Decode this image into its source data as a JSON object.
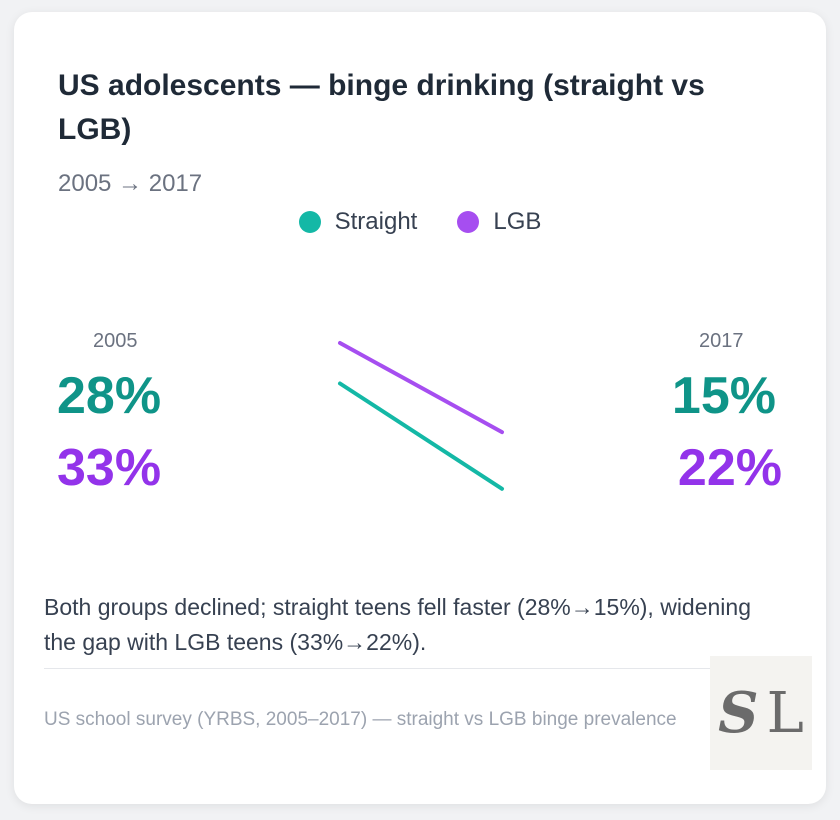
{
  "title": "US adolescents — binge drinking (straight vs LGB)",
  "subtitle": "2005 → 2017",
  "colors": {
    "straight": "#14b8a6",
    "straight_text": "#0f9488",
    "lgb": "#a64ef0",
    "lgb_text": "#9333ea"
  },
  "chart_data": {
    "type": "line",
    "subtype": "slope",
    "title": "US adolescents — binge drinking (straight vs LGB)",
    "x": [
      "2005",
      "2017"
    ],
    "series": [
      {
        "name": "Straight",
        "values": [
          28,
          15
        ],
        "labels": [
          "28%",
          "15%"
        ]
      },
      {
        "name": "LGB",
        "values": [
          33,
          22
        ],
        "labels": [
          "33%",
          "22%"
        ]
      }
    ],
    "unit": "%",
    "legend": "top-center"
  },
  "note": "Both groups declined; straight teens fell faster (28%→15%), widening the gap with LGB teens (33%→22%).",
  "source": "US school survey (YRBS, 2005–2017) — straight vs LGB binge prevalence",
  "logo": {
    "text": "SL"
  }
}
